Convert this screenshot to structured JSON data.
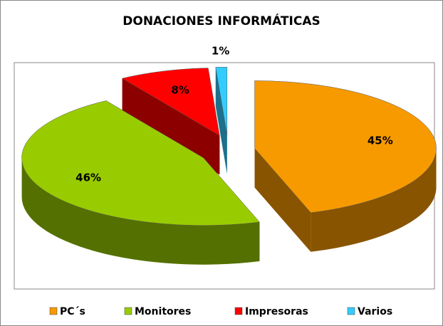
{
  "chart_data": {
    "type": "pie",
    "title": "DONACIONES INFORMÁTICAS",
    "categories": [
      "PC´s",
      "Monitores",
      "Impresoras",
      "Varios"
    ],
    "values": [
      45,
      46,
      8,
      1
    ],
    "value_labels": [
      "45%",
      "46%",
      "8%",
      "1%"
    ],
    "colors": [
      "#f79a00",
      "#99cc00",
      "#ff0000",
      "#33ccff"
    ],
    "legend": "bottom"
  }
}
